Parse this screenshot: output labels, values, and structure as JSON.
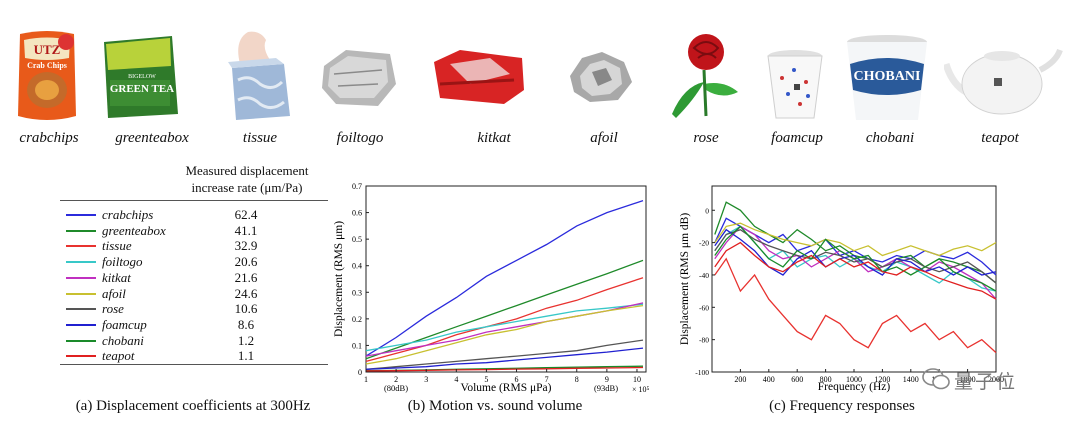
{
  "objects": [
    {
      "name": "crabchips",
      "package_text": [
        "UTZ",
        "Crab Chips"
      ]
    },
    {
      "name": "greenteabox",
      "package_text": [
        "BIGELOW",
        "GREEN TEA"
      ]
    },
    {
      "name": "tissue"
    },
    {
      "name": "foiltogo"
    },
    {
      "name": "kitkat"
    },
    {
      "name": "afoil"
    },
    {
      "name": "rose"
    },
    {
      "name": "foamcup"
    },
    {
      "name": "chobani",
      "package_text": [
        "CHOBANI"
      ]
    },
    {
      "name": "teapot"
    }
  ],
  "table": {
    "header_line1": "Measured displacement",
    "header_line2": "increase rate (μm/Pa)",
    "rows": [
      {
        "name": "crabchips",
        "value": "62.4",
        "color": "#2b2bdc"
      },
      {
        "name": "greenteabox",
        "value": "41.1",
        "color": "#1f8a2a"
      },
      {
        "name": "tissue",
        "value": "32.9",
        "color": "#e8322f"
      },
      {
        "name": "foiltogo",
        "value": "20.6",
        "color": "#38c8c8"
      },
      {
        "name": "kitkat",
        "value": "21.6",
        "color": "#c030c0"
      },
      {
        "name": "afoil",
        "value": "24.6",
        "color": "#c8c030"
      },
      {
        "name": "rose",
        "value": "10.6",
        "color": "#555555"
      },
      {
        "name": "foamcup",
        "value": "8.6",
        "color": "#2020d0"
      },
      {
        "name": "chobani",
        "value": "1.2",
        "color": "#1a8a2a"
      },
      {
        "name": "teapot",
        "value": "1.1",
        "color": "#e02020"
      }
    ]
  },
  "captions": {
    "a": "(a) Displacement coefficients at 300Hz",
    "b": "(b) Motion vs. sound volume",
    "c": "(c) Frequency responses"
  },
  "watermark": {
    "text": "量子位"
  },
  "chart_data": [
    {
      "type": "line",
      "ylabel": "Displacement (RMS μm)",
      "xlabel": "Volume (RMS μPa)",
      "xlim": [
        1,
        10.3
      ],
      "ylim": [
        0,
        0.7
      ],
      "x_ticks": [
        "1",
        "2",
        "3",
        "4",
        "5",
        "6",
        "7",
        "8",
        "9",
        "10"
      ],
      "y_ticks": [
        "0",
        "0.1",
        "0.2",
        "0.3",
        "0.4",
        "0.5",
        "0.6",
        "0.7"
      ],
      "x_exponent": "× 10⁵",
      "annotations": [
        "(80dB)",
        "(93dB)"
      ],
      "x": [
        1,
        2,
        3,
        4,
        5,
        6,
        7,
        8,
        9,
        10.2
      ],
      "series": [
        {
          "name": "crabchips",
          "color": "#2b2bdc",
          "values": [
            0.06,
            0.13,
            0.21,
            0.28,
            0.36,
            0.42,
            0.48,
            0.55,
            0.6,
            0.645
          ]
        },
        {
          "name": "greenteabox",
          "color": "#1f8a2a",
          "values": [
            0.05,
            0.09,
            0.13,
            0.17,
            0.21,
            0.25,
            0.29,
            0.33,
            0.37,
            0.42
          ]
        },
        {
          "name": "tissue",
          "color": "#e8322f",
          "values": [
            0.04,
            0.07,
            0.1,
            0.14,
            0.17,
            0.2,
            0.24,
            0.27,
            0.31,
            0.355
          ]
        },
        {
          "name": "foiltogo",
          "color": "#38c8c8",
          "values": [
            0.08,
            0.1,
            0.12,
            0.15,
            0.17,
            0.19,
            0.21,
            0.23,
            0.24,
            0.255
          ]
        },
        {
          "name": "kitkat",
          "color": "#c030c0",
          "values": [
            0.06,
            0.08,
            0.1,
            0.12,
            0.15,
            0.17,
            0.19,
            0.21,
            0.23,
            0.26
          ]
        },
        {
          "name": "afoil",
          "color": "#c8c030",
          "values": [
            0.03,
            0.05,
            0.08,
            0.11,
            0.14,
            0.16,
            0.19,
            0.21,
            0.23,
            0.25
          ]
        },
        {
          "name": "rose",
          "color": "#555555",
          "values": [
            0.01,
            0.02,
            0.03,
            0.04,
            0.05,
            0.06,
            0.07,
            0.08,
            0.1,
            0.12
          ]
        },
        {
          "name": "foamcup",
          "color": "#2020d0",
          "values": [
            0.01,
            0.015,
            0.02,
            0.03,
            0.035,
            0.045,
            0.055,
            0.065,
            0.075,
            0.09
          ]
        },
        {
          "name": "chobani",
          "color": "#1a8a2a",
          "values": [
            0.005,
            0.006,
            0.008,
            0.01,
            0.012,
            0.014,
            0.016,
            0.018,
            0.02,
            0.022
          ]
        },
        {
          "name": "teapot",
          "color": "#e02020",
          "values": [
            0.004,
            0.005,
            0.006,
            0.008,
            0.009,
            0.011,
            0.012,
            0.014,
            0.015,
            0.017
          ]
        }
      ]
    },
    {
      "type": "line",
      "ylabel": "Displacement (RMS μm dB)",
      "xlabel": "Frequency (Hz)",
      "xlim": [
        0,
        2000
      ],
      "ylim": [
        -100,
        15
      ],
      "x_ticks": [
        "200",
        "400",
        "600",
        "800",
        "1000",
        "1200",
        "1400",
        "1600",
        "1800",
        "2000"
      ],
      "y_ticks": [
        "0",
        "-20",
        "-40",
        "-60",
        "-80",
        "-100"
      ],
      "x": [
        20,
        100,
        200,
        300,
        400,
        500,
        600,
        700,
        800,
        900,
        1000,
        1100,
        1200,
        1300,
        1400,
        1500,
        1600,
        1700,
        1800,
        1900,
        2000
      ],
      "series": [
        {
          "name": "crabchips",
          "color": "#2b2bdc",
          "values": [
            -20,
            -5,
            -10,
            -15,
            -20,
            -15,
            -25,
            -22,
            -18,
            -28,
            -25,
            -30,
            -32,
            -28,
            -30,
            -25,
            -28,
            -30,
            -26,
            -32,
            -40
          ]
        },
        {
          "name": "greenteabox",
          "color": "#1f8a2a",
          "values": [
            -15,
            5,
            0,
            -10,
            -15,
            -20,
            -12,
            -18,
            -25,
            -22,
            -28,
            -30,
            -35,
            -30,
            -28,
            -35,
            -30,
            -32,
            -35,
            -38,
            -45
          ]
        },
        {
          "name": "tissue",
          "color": "#e8322f",
          "values": [
            -40,
            -30,
            -50,
            -40,
            -55,
            -65,
            -75,
            -80,
            -65,
            -70,
            -80,
            -85,
            -70,
            -65,
            -75,
            -70,
            -80,
            -75,
            -85,
            -80,
            -88
          ]
        },
        {
          "name": "foiltogo",
          "color": "#38c8c8",
          "values": [
            -25,
            -15,
            -10,
            -20,
            -30,
            -25,
            -35,
            -30,
            -28,
            -35,
            -30,
            -35,
            -38,
            -32,
            -35,
            -40,
            -45,
            -38,
            -42,
            -48,
            -50
          ]
        },
        {
          "name": "kitkat",
          "color": "#c030c0",
          "values": [
            -30,
            -20,
            -10,
            -15,
            -25,
            -30,
            -28,
            -35,
            -30,
            -25,
            -30,
            -38,
            -35,
            -30,
            -35,
            -38,
            -32,
            -35,
            -40,
            -45,
            -55
          ]
        },
        {
          "name": "afoil",
          "color": "#c8c030",
          "values": [
            -20,
            -10,
            -8,
            -12,
            -15,
            -18,
            -20,
            -22,
            -18,
            -20,
            -25,
            -22,
            -28,
            -25,
            -22,
            -25,
            -28,
            -24,
            -22,
            -25,
            -20
          ]
        },
        {
          "name": "rose",
          "color": "#555555",
          "values": [
            -25,
            -15,
            -12,
            -18,
            -22,
            -25,
            -28,
            -30,
            -26,
            -28,
            -32,
            -30,
            -35,
            -32,
            -30,
            -35,
            -38,
            -35,
            -32,
            -38,
            -45
          ]
        },
        {
          "name": "foamcup",
          "color": "#2020d0",
          "values": [
            -22,
            -12,
            -18,
            -25,
            -35,
            -40,
            -30,
            -25,
            -35,
            -30,
            -28,
            -35,
            -40,
            -30,
            -32,
            -38,
            -35,
            -40,
            -35,
            -40,
            -38
          ]
        },
        {
          "name": "chobani",
          "color": "#1a8a2a",
          "values": [
            -28,
            -18,
            -10,
            -20,
            -30,
            -35,
            -25,
            -30,
            -18,
            -25,
            -30,
            -28,
            -38,
            -35,
            -40,
            -35,
            -30,
            -38,
            -42,
            -45,
            -50
          ]
        },
        {
          "name": "teapot",
          "color": "#e02020",
          "values": [
            -35,
            -25,
            -20,
            -28,
            -35,
            -38,
            -32,
            -28,
            -35,
            -30,
            -35,
            -32,
            -38,
            -40,
            -35,
            -38,
            -42,
            -45,
            -48,
            -50,
            -55
          ]
        }
      ]
    }
  ]
}
